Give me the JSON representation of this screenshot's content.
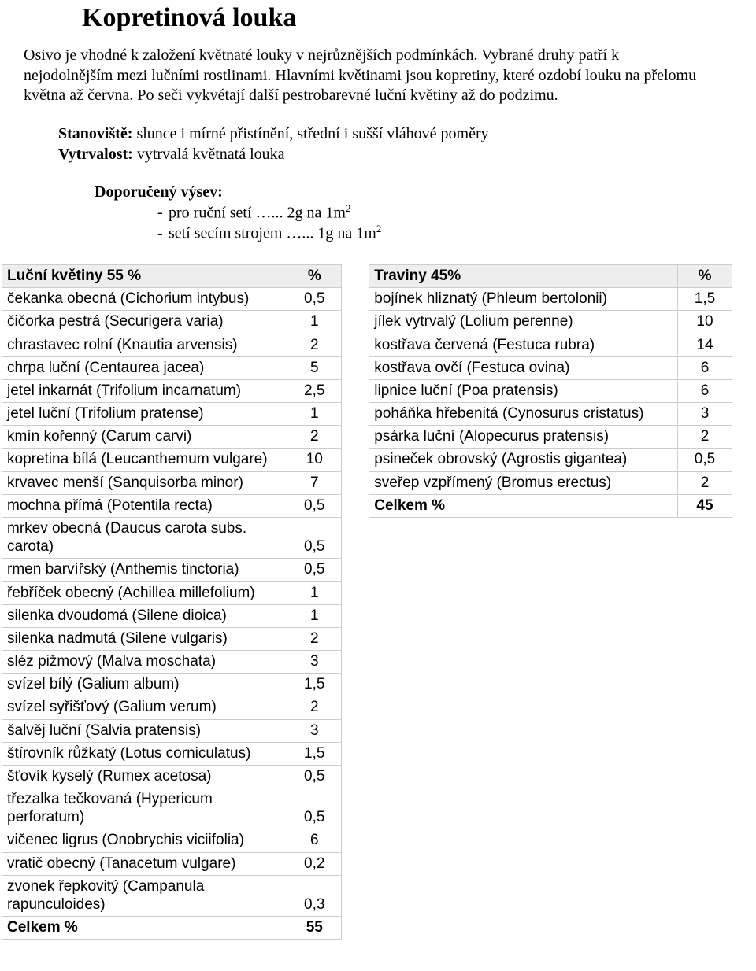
{
  "title": "Kopretinová louka",
  "intro": "Osivo je vhodné k založení květnaté louky v nejrůznějších podmínkách. Vybrané druhy patří k nejodolnějším mezi lučními rostlinami. Hlavními květinami jsou kopretiny, které ozdobí louku na přelomu května až června. Po seči vykvétají další pestrobarevné luční květiny až do podzimu.",
  "meta": {
    "stanoviste_label": "Stanoviště:",
    "stanoviste_value": " slunce i mírné přistínění, střední i sušší vláhové poměry",
    "vytrvalost_label": "Vytrvalost:",
    "vytrvalost_value": " vytrvalá květnatá louka"
  },
  "sowing": {
    "title": "Doporučený výsev:",
    "items": [
      {
        "text": "pro ruční setí …...  2g na 1m",
        "sup": "2"
      },
      {
        "text": "setí secím strojem …... 1g na 1m",
        "sup": "2"
      }
    ]
  },
  "flowers": {
    "header_name": "Luční květiny  55 %",
    "header_pct": "%",
    "rows": [
      {
        "name": "čekanka obecná (Cichorium intybus)",
        "pct": "0,5"
      },
      {
        "name": "čičorka pestrá (Securigera varia)",
        "pct": "1"
      },
      {
        "name": "chrastavec rolní (Knautia arvensis)",
        "pct": "2"
      },
      {
        "name": "chrpa luční (Centaurea jacea)",
        "pct": "5"
      },
      {
        "name": "jetel inkarnát (Trifolium incarnatum)",
        "pct": "2,5"
      },
      {
        "name": "jetel luční (Trifolium pratense)",
        "pct": "1"
      },
      {
        "name": "kmín kořenný (Carum carvi)",
        "pct": "2"
      },
      {
        "name": "kopretina bílá (Leucanthemum vulgare)",
        "pct": "10"
      },
      {
        "name": "krvavec menší (Sanquisorba minor)",
        "pct": "7"
      },
      {
        "name": "mochna přímá (Potentila recta)",
        "pct": "0,5"
      },
      {
        "name": "mrkev obecná (Daucus carota subs. carota)",
        "pct": "0,5"
      },
      {
        "name": "rmen barvířský (Anthemis tinctoria)",
        "pct": "0,5"
      },
      {
        "name": "řebříček obecný (Achillea millefolium)",
        "pct": "1"
      },
      {
        "name": "silenka dvoudomá (Silene dioica)",
        "pct": "1"
      },
      {
        "name": "silenka nadmutá (Silene vulgaris)",
        "pct": "2"
      },
      {
        "name": "sléz pižmový (Malva moschata)",
        "pct": "3"
      },
      {
        "name": "svízel bílý (Galium album)",
        "pct": "1,5"
      },
      {
        "name": "svízel syřišťový (Galium verum)",
        "pct": "2"
      },
      {
        "name": "šalvěj luční (Salvia pratensis)",
        "pct": "3"
      },
      {
        "name": "štírovník růžkatý (Lotus corniculatus)",
        "pct": "1,5"
      },
      {
        "name": "šťovík kyselý (Rumex acetosa)",
        "pct": "0,5"
      },
      {
        "name": "třezalka tečkovaná (Hypericum perforatum)",
        "pct": "0,5"
      },
      {
        "name": "vičenec ligrus (Onobrychis viciifolia)",
        "pct": "6"
      },
      {
        "name": "vratič obecný (Tanacetum vulgare)",
        "pct": "0,2"
      },
      {
        "name": "zvonek řepkovitý (Campanula rapunculoides)",
        "pct": "0,3"
      }
    ],
    "total_label": "Celkem %",
    "total_value": "55"
  },
  "grasses": {
    "header_name": "Traviny  45%",
    "header_pct": "%",
    "rows": [
      {
        "name": "bojínek hliznatý (Phleum bertolonii)",
        "pct": "1,5"
      },
      {
        "name": "jílek vytrvalý (Lolium perenne)",
        "pct": "10"
      },
      {
        "name": "kostřava červená (Festuca rubra)",
        "pct": "14"
      },
      {
        "name": "kostřava ovčí (Festuca ovina)",
        "pct": "6"
      },
      {
        "name": "lipnice luční (Poa pratensis)",
        "pct": "6"
      },
      {
        "name": "poháňka hřebenitá (Cynosurus cristatus)",
        "pct": "3"
      },
      {
        "name": "psárka luční (Alopecurus pratensis)",
        "pct": "2"
      },
      {
        "name": "psineček obrovský (Agrostis gigantea)",
        "pct": "0,5"
      },
      {
        "name": "sveřep vzpřímený (Bromus erectus)",
        "pct": "2"
      }
    ],
    "total_label": "Celkem %",
    "total_value": "45"
  }
}
